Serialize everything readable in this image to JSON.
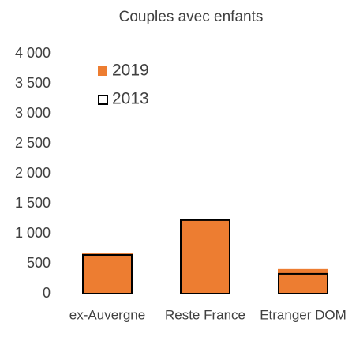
{
  "chart_data": {
    "type": "bar",
    "title": "Couples avec enfants",
    "categories": [
      "ex-Auvergne",
      "Reste France",
      "Etranger DOM"
    ],
    "series": [
      {
        "name": "2019",
        "color": "#ed7d31",
        "values": [
          670,
          1250,
          410
        ]
      },
      {
        "name": "2013",
        "color": "#000000",
        "values": [
          645,
          1225,
          330
        ]
      }
    ],
    "ylim": [
      0,
      4000
    ],
    "yticks": [
      0,
      500,
      {
        "value": 1000,
        "label": "1 000"
      },
      {
        "value": 1500,
        "label": "1 500"
      },
      {
        "value": 2000,
        "label": "2 000"
      },
      {
        "value": 2500,
        "label": "2 500"
      },
      {
        "value": 3000,
        "label": "3 000"
      },
      {
        "value": 3500,
        "label": "3 500"
      },
      {
        "value": 4000,
        "label": "4 000"
      }
    ],
    "grid": false,
    "legend": "top-left"
  }
}
